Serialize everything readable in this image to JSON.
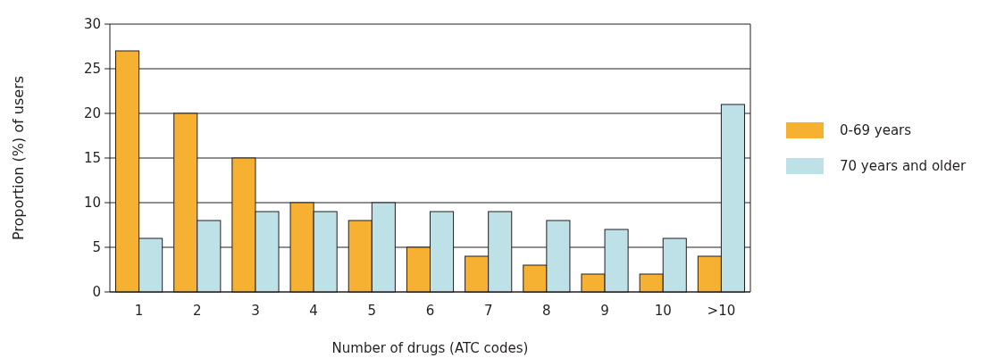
{
  "chart_data": {
    "type": "bar",
    "xlabel": "Number of drugs (ATC codes)",
    "ylabel": "Proportion (%) of users",
    "categories": [
      "1",
      "2",
      "3",
      "4",
      "5",
      "6",
      "7",
      "8",
      "9",
      "10",
      ">10"
    ],
    "series": [
      {
        "name": "0-69 years",
        "color": "#f7b132",
        "values": [
          27,
          20,
          15,
          10,
          8,
          5,
          4,
          3,
          2,
          2,
          4
        ]
      },
      {
        "name": "70 years and older",
        "color": "#bde1e6",
        "values": [
          6,
          8,
          9,
          9,
          10,
          9,
          9,
          8,
          7,
          6,
          21
        ]
      }
    ],
    "ylim": [
      0,
      30
    ],
    "yticks": [
      0,
      5,
      10,
      15,
      20,
      25,
      30
    ],
    "grid": "y",
    "legend": "right"
  }
}
